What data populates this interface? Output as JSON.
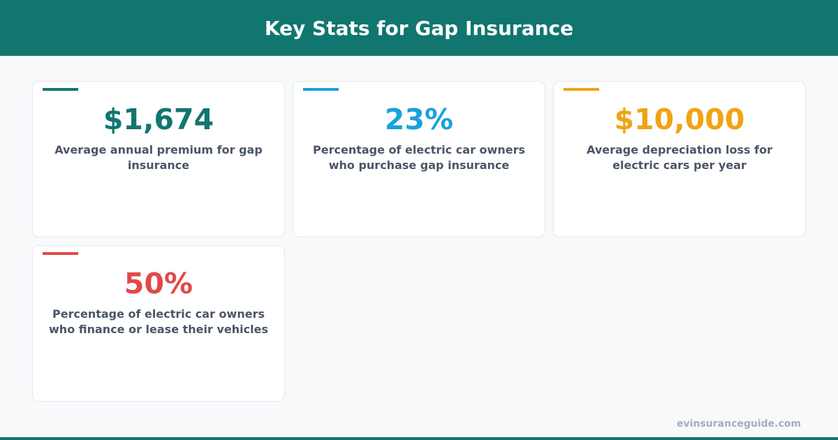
{
  "header": {
    "title": "Key Stats for Gap Insurance"
  },
  "cards": [
    {
      "value": "$1,674",
      "label": "Average annual premium for gap insurance",
      "color": "#11766f"
    },
    {
      "value": "23%",
      "label": "Percentage of electric car owners who purchase gap insurance",
      "color": "#17a2dc"
    },
    {
      "value": "$10,000",
      "label": "Average depreciation loss for electric cars per year",
      "color": "#f0a314"
    },
    {
      "value": "50%",
      "label": "Percentage of electric car owners who finance or lease their vehicles",
      "color": "#e24848"
    }
  ],
  "footer": {
    "site": "evinsuranceguide.com"
  }
}
